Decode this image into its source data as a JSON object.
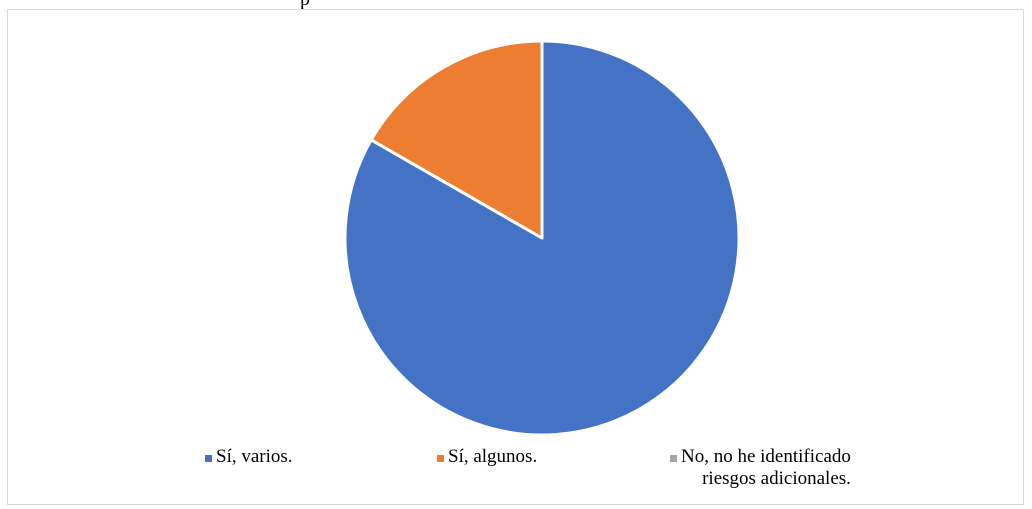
{
  "header": {
    "title_fragment": "p"
  },
  "chart_data": {
    "type": "pie",
    "categories": [
      "Sí, varios.",
      "Sí, algunos.",
      "No, no he identificado riesgos adicionales."
    ],
    "values": [
      83.3,
      16.7,
      0
    ],
    "colors": [
      "#4472c4",
      "#ed7d31",
      "#a5a5a5"
    ],
    "legend_position": "bottom"
  },
  "legend": {
    "items": [
      {
        "label_line1": "Sí, varios.",
        "label_line2": "",
        "color": "#4472c4"
      },
      {
        "label_line1": "Sí, algunos.",
        "label_line2": "",
        "color": "#ed7d31"
      },
      {
        "label_line1": "No, no he identificado",
        "label_line2": "riesgos adicionales.",
        "color": "#a5a5a5"
      }
    ]
  }
}
